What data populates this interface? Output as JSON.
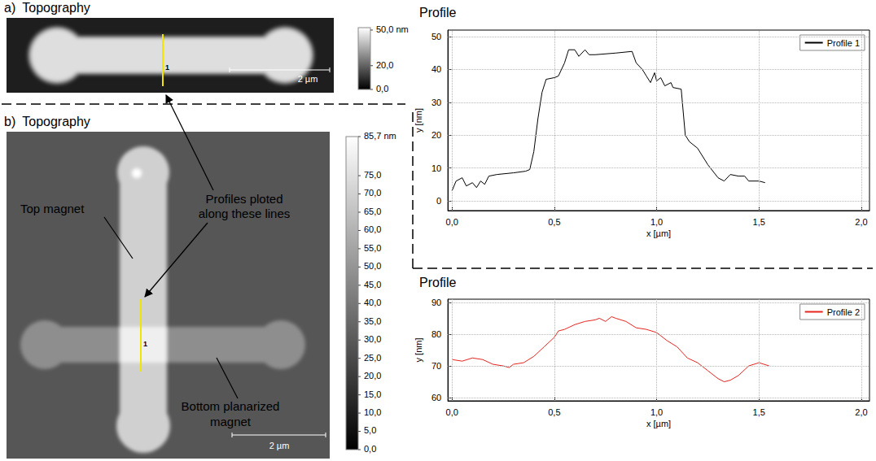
{
  "figure": {
    "annotation": "Profiles ploted along these lines",
    "panels": [
      {
        "label": "a)",
        "title": "Topography",
        "profile_label": "1",
        "scale_bar": "2 µm",
        "colorbar": {
          "range": [
            0,
            52
          ],
          "ticks": [
            {
              "value": 0,
              "label": "0,0"
            },
            {
              "value": 20,
              "label": "20,0"
            },
            {
              "value": 50,
              "label": "50,0 nm"
            }
          ]
        }
      },
      {
        "label": "b)",
        "title": "Topography",
        "profile_label": "1",
        "scale_bar": "2 µm",
        "labels": [
          "Top magnet",
          "Bottom planarized magnet"
        ],
        "colorbar": {
          "range": [
            0,
            85.7
          ],
          "ticks": [
            {
              "value": 0,
              "label": "0,0"
            },
            {
              "value": 5,
              "label": "5,0"
            },
            {
              "value": 10,
              "label": "10,0"
            },
            {
              "value": 15,
              "label": "15,0"
            },
            {
              "value": 20,
              "label": "20,0"
            },
            {
              "value": 25,
              "label": "25,0"
            },
            {
              "value": 30,
              "label": "30,0"
            },
            {
              "value": 35,
              "label": "35,0"
            },
            {
              "value": 40,
              "label": "40,0"
            },
            {
              "value": 45,
              "label": "45,0"
            },
            {
              "value": 50,
              "label": "50,0"
            },
            {
              "value": 55,
              "label": "55,0"
            },
            {
              "value": 60,
              "label": "60,0"
            },
            {
              "value": 65,
              "label": "65,0"
            },
            {
              "value": 70,
              "label": "70,0"
            },
            {
              "value": 75,
              "label": "75,0"
            },
            {
              "value": 85.7,
              "label": "85,7 nm"
            }
          ]
        }
      }
    ]
  },
  "chart_data": [
    {
      "type": "line",
      "title": "Profile",
      "x_label": "x [µm]",
      "y_label": "y [nm]",
      "xlim": [
        -0.02,
        2.04
      ],
      "ylim": [
        -3,
        52
      ],
      "xticks": [
        {
          "value": 0,
          "label": "0,0"
        },
        {
          "value": 0.5,
          "label": "0,5"
        },
        {
          "value": 1,
          "label": "1,0"
        },
        {
          "value": 1.5,
          "label": "1,5"
        },
        {
          "value": 2,
          "label": "2,0"
        }
      ],
      "yticks": [
        0,
        10,
        20,
        30,
        40,
        50
      ],
      "grid": true,
      "legend": "upper right",
      "x": [
        0,
        0.02,
        0.05,
        0.07,
        0.1,
        0.12,
        0.14,
        0.16,
        0.18,
        0.22,
        0.3,
        0.36,
        0.38,
        0.4,
        0.42,
        0.44,
        0.46,
        0.5,
        0.52,
        0.55,
        0.57,
        0.6,
        0.62,
        0.65,
        0.67,
        0.7,
        0.8,
        0.88,
        0.9,
        0.93,
        0.95,
        0.97,
        0.99,
        1.0,
        1.02,
        1.04,
        1.07,
        1.08,
        1.12,
        1.14,
        1.16,
        1.2,
        1.25,
        1.3,
        1.33,
        1.36,
        1.4,
        1.43,
        1.45,
        1.5,
        1.53
      ],
      "series": [
        {
          "name": "Profile 1",
          "color": "#000000",
          "values": [
            3,
            6,
            7,
            4.5,
            5.5,
            4,
            6,
            5,
            7.5,
            8,
            8.5,
            9,
            9.5,
            15,
            25,
            33,
            37,
            37.5,
            38,
            42,
            46,
            46,
            44,
            46,
            44.5,
            44.5,
            45,
            45.5,
            42,
            40,
            38,
            36,
            39,
            36.5,
            37.5,
            35,
            36,
            34.5,
            34,
            20,
            18,
            16,
            11,
            7,
            6,
            8,
            7.5,
            7.5,
            6,
            6,
            5.5
          ]
        }
      ]
    },
    {
      "type": "line",
      "title": "Profile",
      "x_label": "x [µm]",
      "y_label": "y [nm]",
      "xlim": [
        -0.02,
        2.04
      ],
      "ylim": [
        59,
        91
      ],
      "xticks": [
        {
          "value": 0,
          "label": "0,0"
        },
        {
          "value": 0.5,
          "label": "0,5"
        },
        {
          "value": 1,
          "label": "1,0"
        },
        {
          "value": 1.5,
          "label": "1,5"
        },
        {
          "value": 2,
          "label": "2,0"
        }
      ],
      "yticks": [
        60,
        70,
        80,
        90
      ],
      "grid": true,
      "legend": "upper right",
      "x": [
        0,
        0.05,
        0.1,
        0.15,
        0.2,
        0.25,
        0.28,
        0.3,
        0.35,
        0.4,
        0.45,
        0.5,
        0.52,
        0.55,
        0.6,
        0.65,
        0.7,
        0.72,
        0.75,
        0.78,
        0.8,
        0.85,
        0.9,
        0.95,
        1.0,
        1.05,
        1.1,
        1.15,
        1.2,
        1.25,
        1.3,
        1.33,
        1.36,
        1.4,
        1.45,
        1.5,
        1.55
      ],
      "series": [
        {
          "name": "Profile 2",
          "color": "#e8251f",
          "values": [
            72,
            71.5,
            72.5,
            72,
            70.5,
            70,
            69.5,
            70.5,
            71,
            73,
            76,
            79,
            81,
            81.5,
            83,
            84,
            84.5,
            85,
            84,
            85.5,
            85,
            84,
            82,
            81.5,
            80.5,
            78,
            76,
            72.5,
            71,
            68.5,
            66,
            65,
            65.5,
            67,
            70,
            71,
            70
          ]
        }
      ]
    }
  ]
}
